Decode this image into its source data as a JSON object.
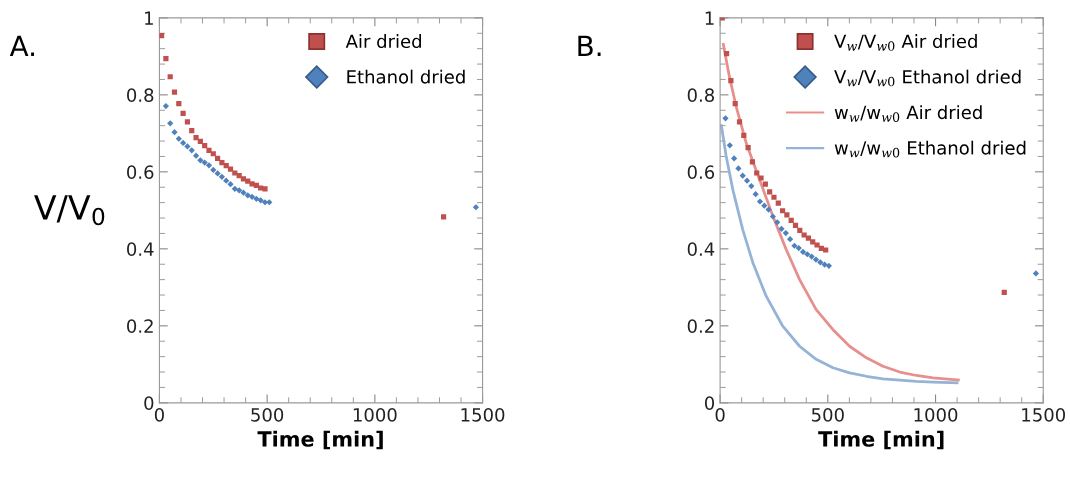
{
  "chart_data": [
    {
      "type": "scatter",
      "annotations": [
        "A."
      ],
      "xlabel": "Time [min]",
      "ylabel": "V/V$_{0}$",
      "xlim": [
        0,
        1500
      ],
      "ylim": [
        0,
        1
      ],
      "xticks": [
        0,
        500,
        1000,
        1500
      ],
      "yticks": [
        0,
        0.2,
        0.4,
        0.6,
        0.8,
        1
      ],
      "grid": false,
      "legend": "top right",
      "series": [
        {
          "name": "Air dried",
          "color": "#c0504d",
          "marker": "square",
          "x": [
            10,
            30,
            50,
            70,
            90,
            110,
            130,
            150,
            170,
            190,
            210,
            230,
            250,
            270,
            290,
            310,
            330,
            350,
            370,
            390,
            410,
            430,
            450,
            470,
            490,
            1319
          ],
          "values": [
            0.954,
            0.894,
            0.847,
            0.807,
            0.777,
            0.752,
            0.73,
            0.707,
            0.689,
            0.679,
            0.668,
            0.656,
            0.647,
            0.635,
            0.624,
            0.616,
            0.607,
            0.597,
            0.59,
            0.582,
            0.576,
            0.569,
            0.565,
            0.558,
            0.556,
            0.483
          ]
        },
        {
          "name": "Ethanol dried",
          "color": "#4f81bd",
          "marker": "diamond",
          "x": [
            30,
            50,
            70,
            90,
            110,
            130,
            150,
            170,
            190,
            210,
            230,
            250,
            270,
            290,
            310,
            330,
            350,
            370,
            390,
            410,
            430,
            450,
            470,
            490,
            510,
            1469
          ],
          "values": [
            0.771,
            0.726,
            0.703,
            0.686,
            0.675,
            0.666,
            0.656,
            0.642,
            0.63,
            0.624,
            0.617,
            0.605,
            0.596,
            0.587,
            0.577,
            0.568,
            0.556,
            0.552,
            0.546,
            0.539,
            0.535,
            0.53,
            0.526,
            0.521,
            0.521,
            0.508
          ]
        }
      ]
    },
    {
      "type": "scatter",
      "annotations": [
        "B."
      ],
      "xlabel": "Time [min]",
      "xlim": [
        0,
        1500
      ],
      "ylim": [
        0,
        1
      ],
      "xticks": [
        0,
        500,
        1000,
        1500
      ],
      "yticks": [
        0,
        0.2,
        0.4,
        0.6,
        0.8,
        1
      ],
      "grid": false,
      "legend": "top right",
      "series": [
        {
          "name": "V$_{w}$/V$_{w0}$ Air dried",
          "color": "#c0504d",
          "marker": "square",
          "x": [
            10,
            30,
            50,
            70,
            90,
            110,
            130,
            150,
            170,
            190,
            210,
            230,
            250,
            270,
            290,
            310,
            330,
            350,
            370,
            390,
            410,
            430,
            450,
            470,
            490,
            1319
          ],
          "values": [
            1.0,
            0.907,
            0.837,
            0.777,
            0.73,
            0.695,
            0.663,
            0.626,
            0.597,
            0.584,
            0.568,
            0.548,
            0.534,
            0.519,
            0.499,
            0.488,
            0.474,
            0.461,
            0.448,
            0.436,
            0.428,
            0.418,
            0.41,
            0.401,
            0.397,
            0.287
          ]
        },
        {
          "name": "V$_{w}$/V$_{w0}$ Ethanol dried",
          "color": "#4f81bd",
          "marker": "diamond",
          "x": [
            25,
            45,
            65,
            85,
            105,
            125,
            145,
            165,
            185,
            205,
            225,
            245,
            265,
            285,
            305,
            325,
            345,
            365,
            385,
            405,
            425,
            445,
            465,
            485,
            505,
            1466
          ],
          "values": [
            0.739,
            0.669,
            0.635,
            0.609,
            0.59,
            0.577,
            0.563,
            0.542,
            0.523,
            0.512,
            0.502,
            0.484,
            0.469,
            0.452,
            0.441,
            0.425,
            0.408,
            0.402,
            0.392,
            0.386,
            0.38,
            0.372,
            0.365,
            0.359,
            0.356,
            0.336
          ]
        },
        {
          "name": "w$_{w}$/w$_{w0}$ Air dried",
          "type": "line",
          "color": "#e6908e",
          "marker": "none",
          "x": [
            15,
            43,
            74,
            121,
            183,
            245,
            307,
            369,
            446,
            524,
            601,
            679,
            756,
            834,
            911,
            989,
            1106
          ],
          "values": [
            0.931,
            0.848,
            0.771,
            0.675,
            0.58,
            0.485,
            0.398,
            0.32,
            0.242,
            0.19,
            0.147,
            0.117,
            0.095,
            0.08,
            0.071,
            0.065,
            0.059
          ]
        },
        {
          "name": "w$_{w}$/w$_{w0}$ Ethanol dried",
          "type": "line",
          "color": "#95b3d7",
          "marker": "none",
          "x": [
            6,
            28,
            59,
            105,
            152,
            214,
            291,
            369,
            446,
            524,
            601,
            679,
            756,
            834,
            911,
            989,
            1100
          ],
          "values": [
            0.72,
            0.641,
            0.554,
            0.45,
            0.364,
            0.277,
            0.199,
            0.147,
            0.113,
            0.091,
            0.078,
            0.069,
            0.062,
            0.059,
            0.056,
            0.054,
            0.052
          ]
        }
      ]
    }
  ]
}
